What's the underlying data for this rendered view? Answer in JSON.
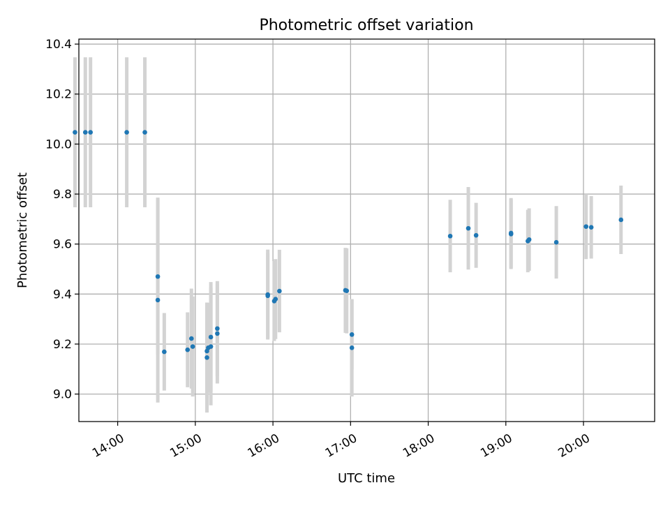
{
  "chart_data": {
    "type": "scatter",
    "title": "Photometric offset variation",
    "xlabel": "UTC time",
    "ylabel": "Photometric offset",
    "x_axis": "time",
    "xlim": [
      "13:30",
      "20:55"
    ],
    "ylim": [
      8.89,
      10.42
    ],
    "xticks": [
      "14:00",
      "15:00",
      "16:00",
      "17:00",
      "18:00",
      "19:00",
      "20:00"
    ],
    "yticks": [
      9.0,
      9.2,
      9.4,
      9.6,
      9.8,
      10.0,
      10.2,
      10.4
    ],
    "ytick_labels": [
      "9.0",
      "9.2",
      "9.4",
      "9.6",
      "9.8",
      "10.0",
      "10.2",
      "10.4"
    ],
    "grid": true,
    "legend": false,
    "colors": {
      "point": "#1f77b4",
      "errorbar": "#d3d3d3",
      "grid": "#b0b0b0"
    },
    "series": [
      {
        "points": [
          {
            "x": "13:27",
            "y": 10.047,
            "err": 0.3
          },
          {
            "x": "13:35",
            "y": 10.047,
            "err": 0.3
          },
          {
            "x": "13:39",
            "y": 10.047,
            "err": 0.3
          },
          {
            "x": "14:07",
            "y": 10.047,
            "err": 0.3
          },
          {
            "x": "14:21",
            "y": 10.047,
            "err": 0.3
          },
          {
            "x": "14:31",
            "y": 9.47,
            "err": 0.31
          },
          {
            "x": "14:31",
            "y": 9.376,
            "err": 0.41
          },
          {
            "x": "14:36",
            "y": 9.169,
            "err": 0.155
          },
          {
            "x": "14:54",
            "y": 9.177,
            "err": 0.15
          },
          {
            "x": "14:57",
            "y": 9.222,
            "err": 0.2
          },
          {
            "x": "14:58",
            "y": 9.19,
            "err": 0.2
          },
          {
            "x": "15:09",
            "y": 9.146,
            "err": 0.22
          },
          {
            "x": "15:09",
            "y": 9.172,
            "err": 0.19
          },
          {
            "x": "15:10",
            "y": 9.185,
            "err": 0.18
          },
          {
            "x": "15:12",
            "y": 9.19,
            "err": 0.235
          },
          {
            "x": "15:12",
            "y": 9.228,
            "err": 0.22
          },
          {
            "x": "15:17",
            "y": 9.242,
            "err": 0.2
          },
          {
            "x": "15:17",
            "y": 9.262,
            "err": 0.19
          },
          {
            "x": "15:56",
            "y": 9.393,
            "err": 0.17
          },
          {
            "x": "15:56",
            "y": 9.398,
            "err": 0.18
          },
          {
            "x": "16:01",
            "y": 9.372,
            "err": 0.16
          },
          {
            "x": "16:02",
            "y": 9.38,
            "err": 0.16
          },
          {
            "x": "16:05",
            "y": 9.412,
            "err": 0.165
          },
          {
            "x": "16:56",
            "y": 9.415,
            "err": 0.17
          },
          {
            "x": "16:57",
            "y": 9.413,
            "err": 0.17
          },
          {
            "x": "17:01",
            "y": 9.238,
            "err": 0.14
          },
          {
            "x": "17:01",
            "y": 9.185,
            "err": 0.195
          },
          {
            "x": "18:17",
            "y": 9.632,
            "err": 0.145
          },
          {
            "x": "18:31",
            "y": 9.663,
            "err": 0.165
          },
          {
            "x": "18:37",
            "y": 9.635,
            "err": 0.13
          },
          {
            "x": "19:04",
            "y": 9.64,
            "err": 0.14
          },
          {
            "x": "19:04",
            "y": 9.644,
            "err": 0.14
          },
          {
            "x": "19:17",
            "y": 9.612,
            "err": 0.125
          },
          {
            "x": "19:18",
            "y": 9.618,
            "err": 0.125
          },
          {
            "x": "19:39",
            "y": 9.607,
            "err": 0.145
          },
          {
            "x": "20:02",
            "y": 9.67,
            "err": 0.13
          },
          {
            "x": "20:06",
            "y": 9.667,
            "err": 0.125
          },
          {
            "x": "20:29",
            "y": 9.697,
            "err": 0.137
          }
        ]
      }
    ]
  }
}
